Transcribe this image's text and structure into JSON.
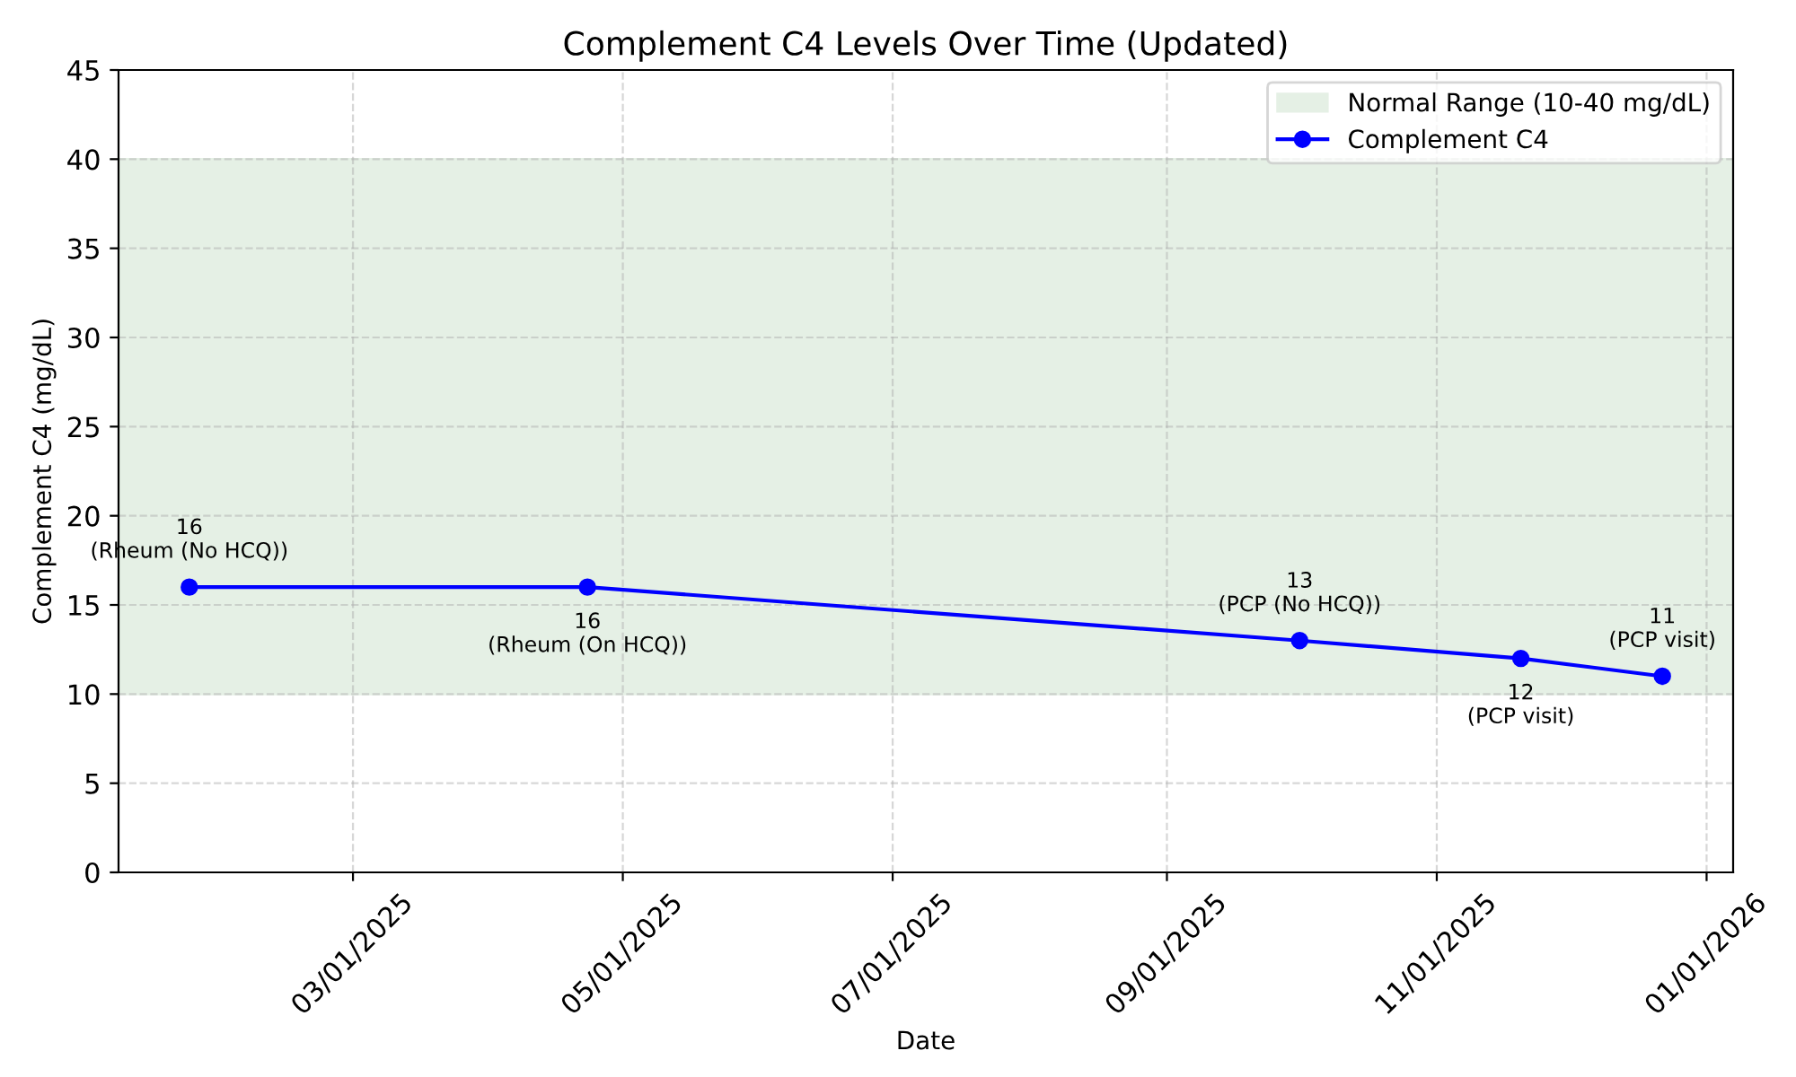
{
  "chart_data": {
    "type": "line",
    "title": "Complement C4 Levels Over Time (Updated)",
    "xlabel": "Date",
    "ylabel": "Complement C4 (mg/dL)",
    "x": [
      "2025-01-23",
      "2025-04-23",
      "2025-10-01",
      "2025-11-20",
      "2025-12-22"
    ],
    "series": [
      {
        "name": "Complement C4",
        "color": "#0000ff",
        "values": [
          16,
          16,
          13,
          12,
          11
        ]
      }
    ],
    "xlim": [
      "2025-01-07",
      "2026-01-07"
    ],
    "xticks": [
      {
        "value": "2025-03-01",
        "label": "03/01/2025"
      },
      {
        "value": "2025-05-01",
        "label": "05/01/2025"
      },
      {
        "value": "2025-07-01",
        "label": "07/01/2025"
      },
      {
        "value": "2025-09-01",
        "label": "09/01/2025"
      },
      {
        "value": "2025-11-01",
        "label": "11/01/2025"
      },
      {
        "value": "2026-01-01",
        "label": "01/01/2026"
      }
    ],
    "ylim": [
      0,
      45
    ],
    "yticks": [
      0,
      5,
      10,
      15,
      20,
      25,
      30,
      35,
      40,
      45
    ],
    "bands": [
      {
        "axis": "y",
        "from": 10,
        "to": 40,
        "label": "Normal Range (10-40 mg/dL)",
        "color": "#e5f0e5"
      }
    ],
    "annotations": [
      {
        "text": "16\n(Rheum (No HCQ))",
        "x": "2025-01-23",
        "y": 16
      },
      {
        "text": "16\n(Rheum (On HCQ))",
        "x": "2025-04-23",
        "y": 16
      },
      {
        "text": "13\n(PCP (No HCQ))",
        "x": "2025-10-01",
        "y": 13
      },
      {
        "text": "12\n(PCP visit)",
        "x": "2025-11-20",
        "y": 12
      },
      {
        "text": "11\n(PCP visit)",
        "x": "2025-12-22",
        "y": 11
      }
    ],
    "grid": true,
    "legend": "top right",
    "marker": "circle",
    "line_style": "solid"
  }
}
